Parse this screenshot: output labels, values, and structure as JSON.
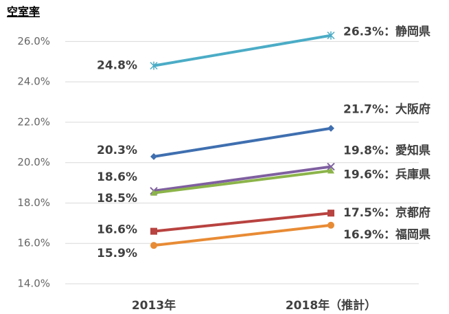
{
  "chart_data": {
    "type": "line",
    "title": "空室率",
    "categories": [
      "2013年",
      "2018年（推計）"
    ],
    "ylim": [
      14,
      27
    ],
    "yticks": [
      {
        "value": 14,
        "label": "14.0%"
      },
      {
        "value": 16,
        "label": "16.0%"
      },
      {
        "value": 18,
        "label": "18.0%"
      },
      {
        "value": 20,
        "label": "20.0%"
      },
      {
        "value": 22,
        "label": "22.0%"
      },
      {
        "value": 24,
        "label": "24.0%"
      },
      {
        "value": 26,
        "label": "26.0%"
      }
    ],
    "grid": true,
    "series": [
      {
        "color": "#4bacc6",
        "marker": "star",
        "values": [
          24.8,
          26.3
        ],
        "value_labels": [
          "24.8%",
          "26.3%：静岡県"
        ]
      },
      {
        "color": "#3f6fb0",
        "marker": "diamond",
        "values": [
          20.3,
          21.7
        ],
        "value_labels": [
          "20.3%",
          "21.7%：大阪府"
        ]
      },
      {
        "color": "#7f5fa0",
        "marker": "x",
        "values": [
          18.6,
          19.8
        ],
        "value_labels": [
          "18.6%",
          "19.8%：愛知県"
        ]
      },
      {
        "color": "#8cb44a",
        "marker": "triangle",
        "values": [
          18.5,
          19.6
        ],
        "value_labels": [
          "18.5%",
          "19.6%：兵庫県"
        ]
      },
      {
        "color": "#b84340",
        "marker": "square",
        "values": [
          16.6,
          17.5
        ],
        "value_labels": [
          "16.6%",
          "17.5%：京都府"
        ]
      },
      {
        "color": "#e88b35",
        "marker": "circle",
        "values": [
          15.9,
          16.9
        ],
        "value_labels": [
          "15.9%",
          "16.9%：福岡県"
        ]
      }
    ]
  }
}
